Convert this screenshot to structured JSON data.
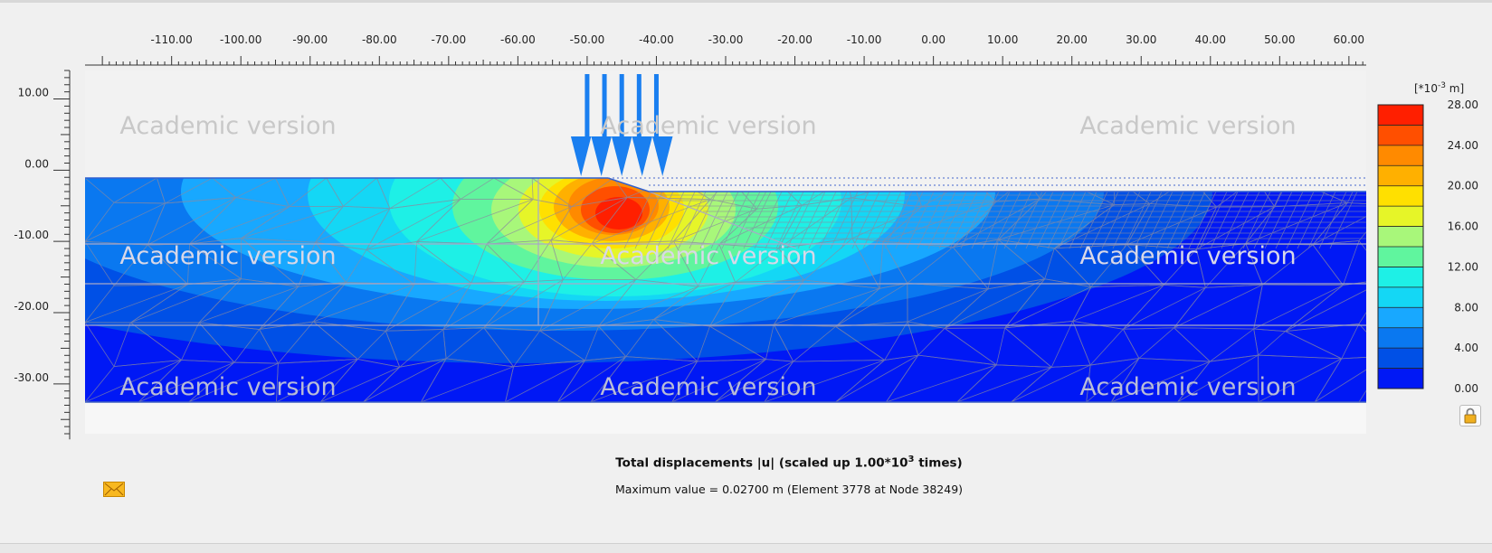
{
  "plot": {
    "x_axis_ticks": [
      "-110.00",
      "-100.00",
      "-90.00",
      "-80.00",
      "-70.00",
      "-60.00",
      "-50.00",
      "-40.00",
      "-30.00",
      "-20.00",
      "-10.00",
      "0.00",
      "10.00",
      "20.00",
      "30.00",
      "40.00",
      "50.00",
      "60.00"
    ],
    "y_axis_ticks": [
      "10.00",
      "0.00",
      "-10.00",
      "-20.00",
      "-30.00"
    ],
    "x_range": [
      -122.5,
      62.5
    ],
    "y_range": [
      -37.0,
      14.0
    ],
    "watermark_text": "Academic version",
    "load": {
      "x_start": -50,
      "x_end": -40
    }
  },
  "legend": {
    "unit_prefix": "[*10",
    "unit_exponent": "-3",
    "unit_suffix": " m]",
    "labels": [
      "28.00",
      "24.00",
      "20.00",
      "16.00",
      "12.00",
      "8.00",
      "4.00",
      "0.00"
    ],
    "colors": [
      "#ff1f00",
      "#ff4f00",
      "#ff8a00",
      "#ffb000",
      "#ffe000",
      "#e6f528",
      "#a8f77a",
      "#60f59e",
      "#1ef0e6",
      "#14d7f5",
      "#18a8ff",
      "#0a78f0",
      "#0050e6",
      "#0018f5"
    ]
  },
  "caption": {
    "title_prefix": "Total displacements |u| (scaled up 1.00*10",
    "title_exponent": "3",
    "title_suffix": " times)",
    "max_value_text": "Maximum value = 0.02700 m (Element 3778 at Node 38249)"
  },
  "icons": {
    "lock": "lock-icon",
    "mail": "mail-icon"
  }
}
